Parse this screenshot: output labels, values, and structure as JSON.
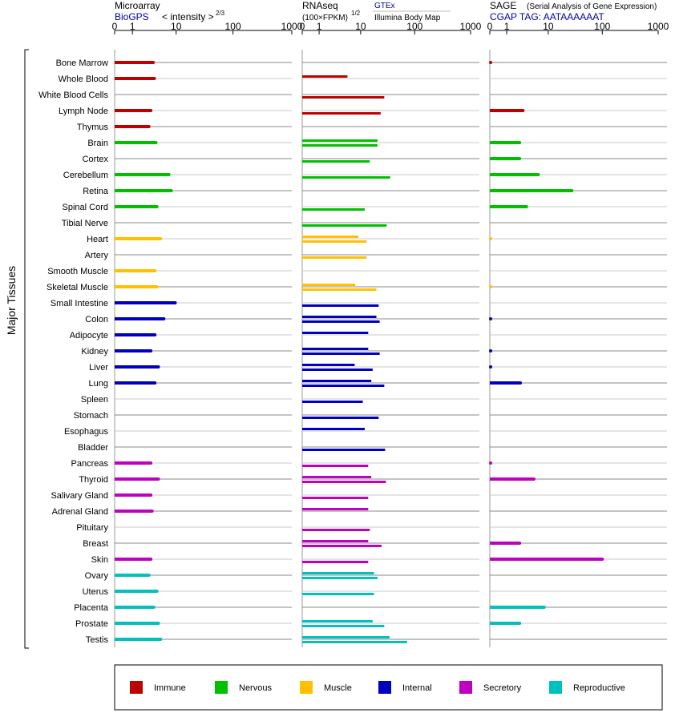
{
  "headers": {
    "microarray": {
      "title": "Microarray",
      "source": "BioGPS",
      "scale": "< intensity >",
      "exponent": "2/3"
    },
    "rnaseq": {
      "title": "RNAseq",
      "scale": "(100×FPKM)",
      "exponent": "1/2",
      "source1": "GTEx",
      "source2": "Illumina Body Map"
    },
    "sage": {
      "title": "SAGE",
      "subtitle": "(Serial Analysis of Gene Expression)",
      "tag": "CGAP TAG: AATAAAAAAT"
    }
  },
  "y_axis_label": "Major Tissues",
  "legend": [
    {
      "label": "Immune",
      "color": "#c00000"
    },
    {
      "label": "Nervous",
      "color": "#00c000"
    },
    {
      "label": "Muscle",
      "color": "#ffc000"
    },
    {
      "label": "Internal",
      "color": "#0000c0"
    },
    {
      "label": "Secretory",
      "color": "#c000c0"
    },
    {
      "label": "Reproductive",
      "color": "#00c0c0"
    }
  ],
  "chart_data": [
    {
      "type": "bar",
      "panel": "Microarray",
      "xaxis_ticks": [
        "0",
        "1",
        "10",
        "100",
        "1000"
      ],
      "xlim": [
        0,
        1000
      ],
      "categories": [
        "Bone Marrow",
        "Whole Blood",
        "White Blood Cells",
        "Lymph Node",
        "Thymus",
        "Brain",
        "Cortex",
        "Cerebellum",
        "Retina",
        "Spinal Cord",
        "Tibial Nerve",
        "Heart",
        "Artery",
        "Smooth Muscle",
        "Skeletal Muscle",
        "Small Intestine",
        "Colon",
        "Adipocyte",
        "Kidney",
        "Liver",
        "Lung",
        "Spleen",
        "Stomach",
        "Esophagus",
        "Bladder",
        "Pancreas",
        "Thyroid",
        "Salivary Gland",
        "Adrenal Gland",
        "Pituitary",
        "Breast",
        "Skin",
        "Ovary",
        "Uterus",
        "Placenta",
        "Prostate",
        "Testis"
      ],
      "groups": [
        "Immune",
        "Immune",
        "Immune",
        "Immune",
        "Immune",
        "Nervous",
        "Nervous",
        "Nervous",
        "Nervous",
        "Nervous",
        "Nervous",
        "Muscle",
        "Muscle",
        "Muscle",
        "Muscle",
        "Internal",
        "Internal",
        "Internal",
        "Internal",
        "Internal",
        "Internal",
        "Internal",
        "Internal",
        "Internal",
        "Internal",
        "Secretory",
        "Secretory",
        "Secretory",
        "Secretory",
        "Secretory",
        "Secretory",
        "Secretory",
        "Reproductive",
        "Reproductive",
        "Reproductive",
        "Reproductive",
        "Reproductive"
      ],
      "values": [
        3.5,
        3.7,
        null,
        3.1,
        2.8,
        4.0,
        null,
        7.3,
        8.1,
        4.2,
        null,
        5.0,
        null,
        3.8,
        4.2,
        9.6,
        5.8,
        3.8,
        3.1,
        4.5,
        3.8,
        null,
        null,
        null,
        null,
        3.1,
        4.5,
        3.1,
        3.3,
        null,
        null,
        3.1,
        2.8,
        4.2,
        3.6,
        4.5,
        5.0
      ]
    },
    {
      "type": "bar",
      "panel": "RNAseq",
      "xaxis_ticks": [
        "0",
        "1",
        "10",
        "100",
        "1000"
      ],
      "xlim": [
        0,
        1000
      ],
      "series": [
        {
          "name": "GTEx",
          "values": [
            null,
            null,
            28,
            24,
            null,
            21,
            15,
            36,
            null,
            12,
            31,
            13,
            13,
            null,
            20,
            22,
            23,
            null,
            23,
            17,
            28,
            11,
            22,
            null,
            29,
            14,
            30,
            14,
            null,
            15,
            25,
            14,
            21,
            18,
            null,
            28,
            73
          ]
        },
        {
          "name": "Illumina Body Map",
          "values": [
            null,
            5.4,
            null,
            null,
            null,
            21,
            null,
            null,
            null,
            null,
            null,
            9.0,
            null,
            null,
            7.8,
            null,
            20,
            14,
            14,
            7.6,
            16,
            null,
            null,
            12,
            null,
            null,
            16,
            null,
            14,
            null,
            14,
            null,
            18,
            null,
            null,
            17,
            35
          ]
        }
      ]
    },
    {
      "type": "bar",
      "panel": "SAGE",
      "xaxis_ticks": [
        "0",
        "1",
        "10",
        "100",
        "1000"
      ],
      "xlim": [
        0,
        1000
      ],
      "values": [
        0.02,
        null,
        null,
        2.9,
        null,
        2.4,
        2.4,
        6.3,
        28,
        3.5,
        null,
        0.01,
        null,
        null,
        0.01,
        null,
        0.02,
        null,
        0.02,
        0.02,
        2.5,
        null,
        null,
        null,
        null,
        0.02,
        5.1,
        null,
        null,
        null,
        2.4,
        100,
        null,
        null,
        8.3,
        2.4,
        null
      ]
    }
  ]
}
